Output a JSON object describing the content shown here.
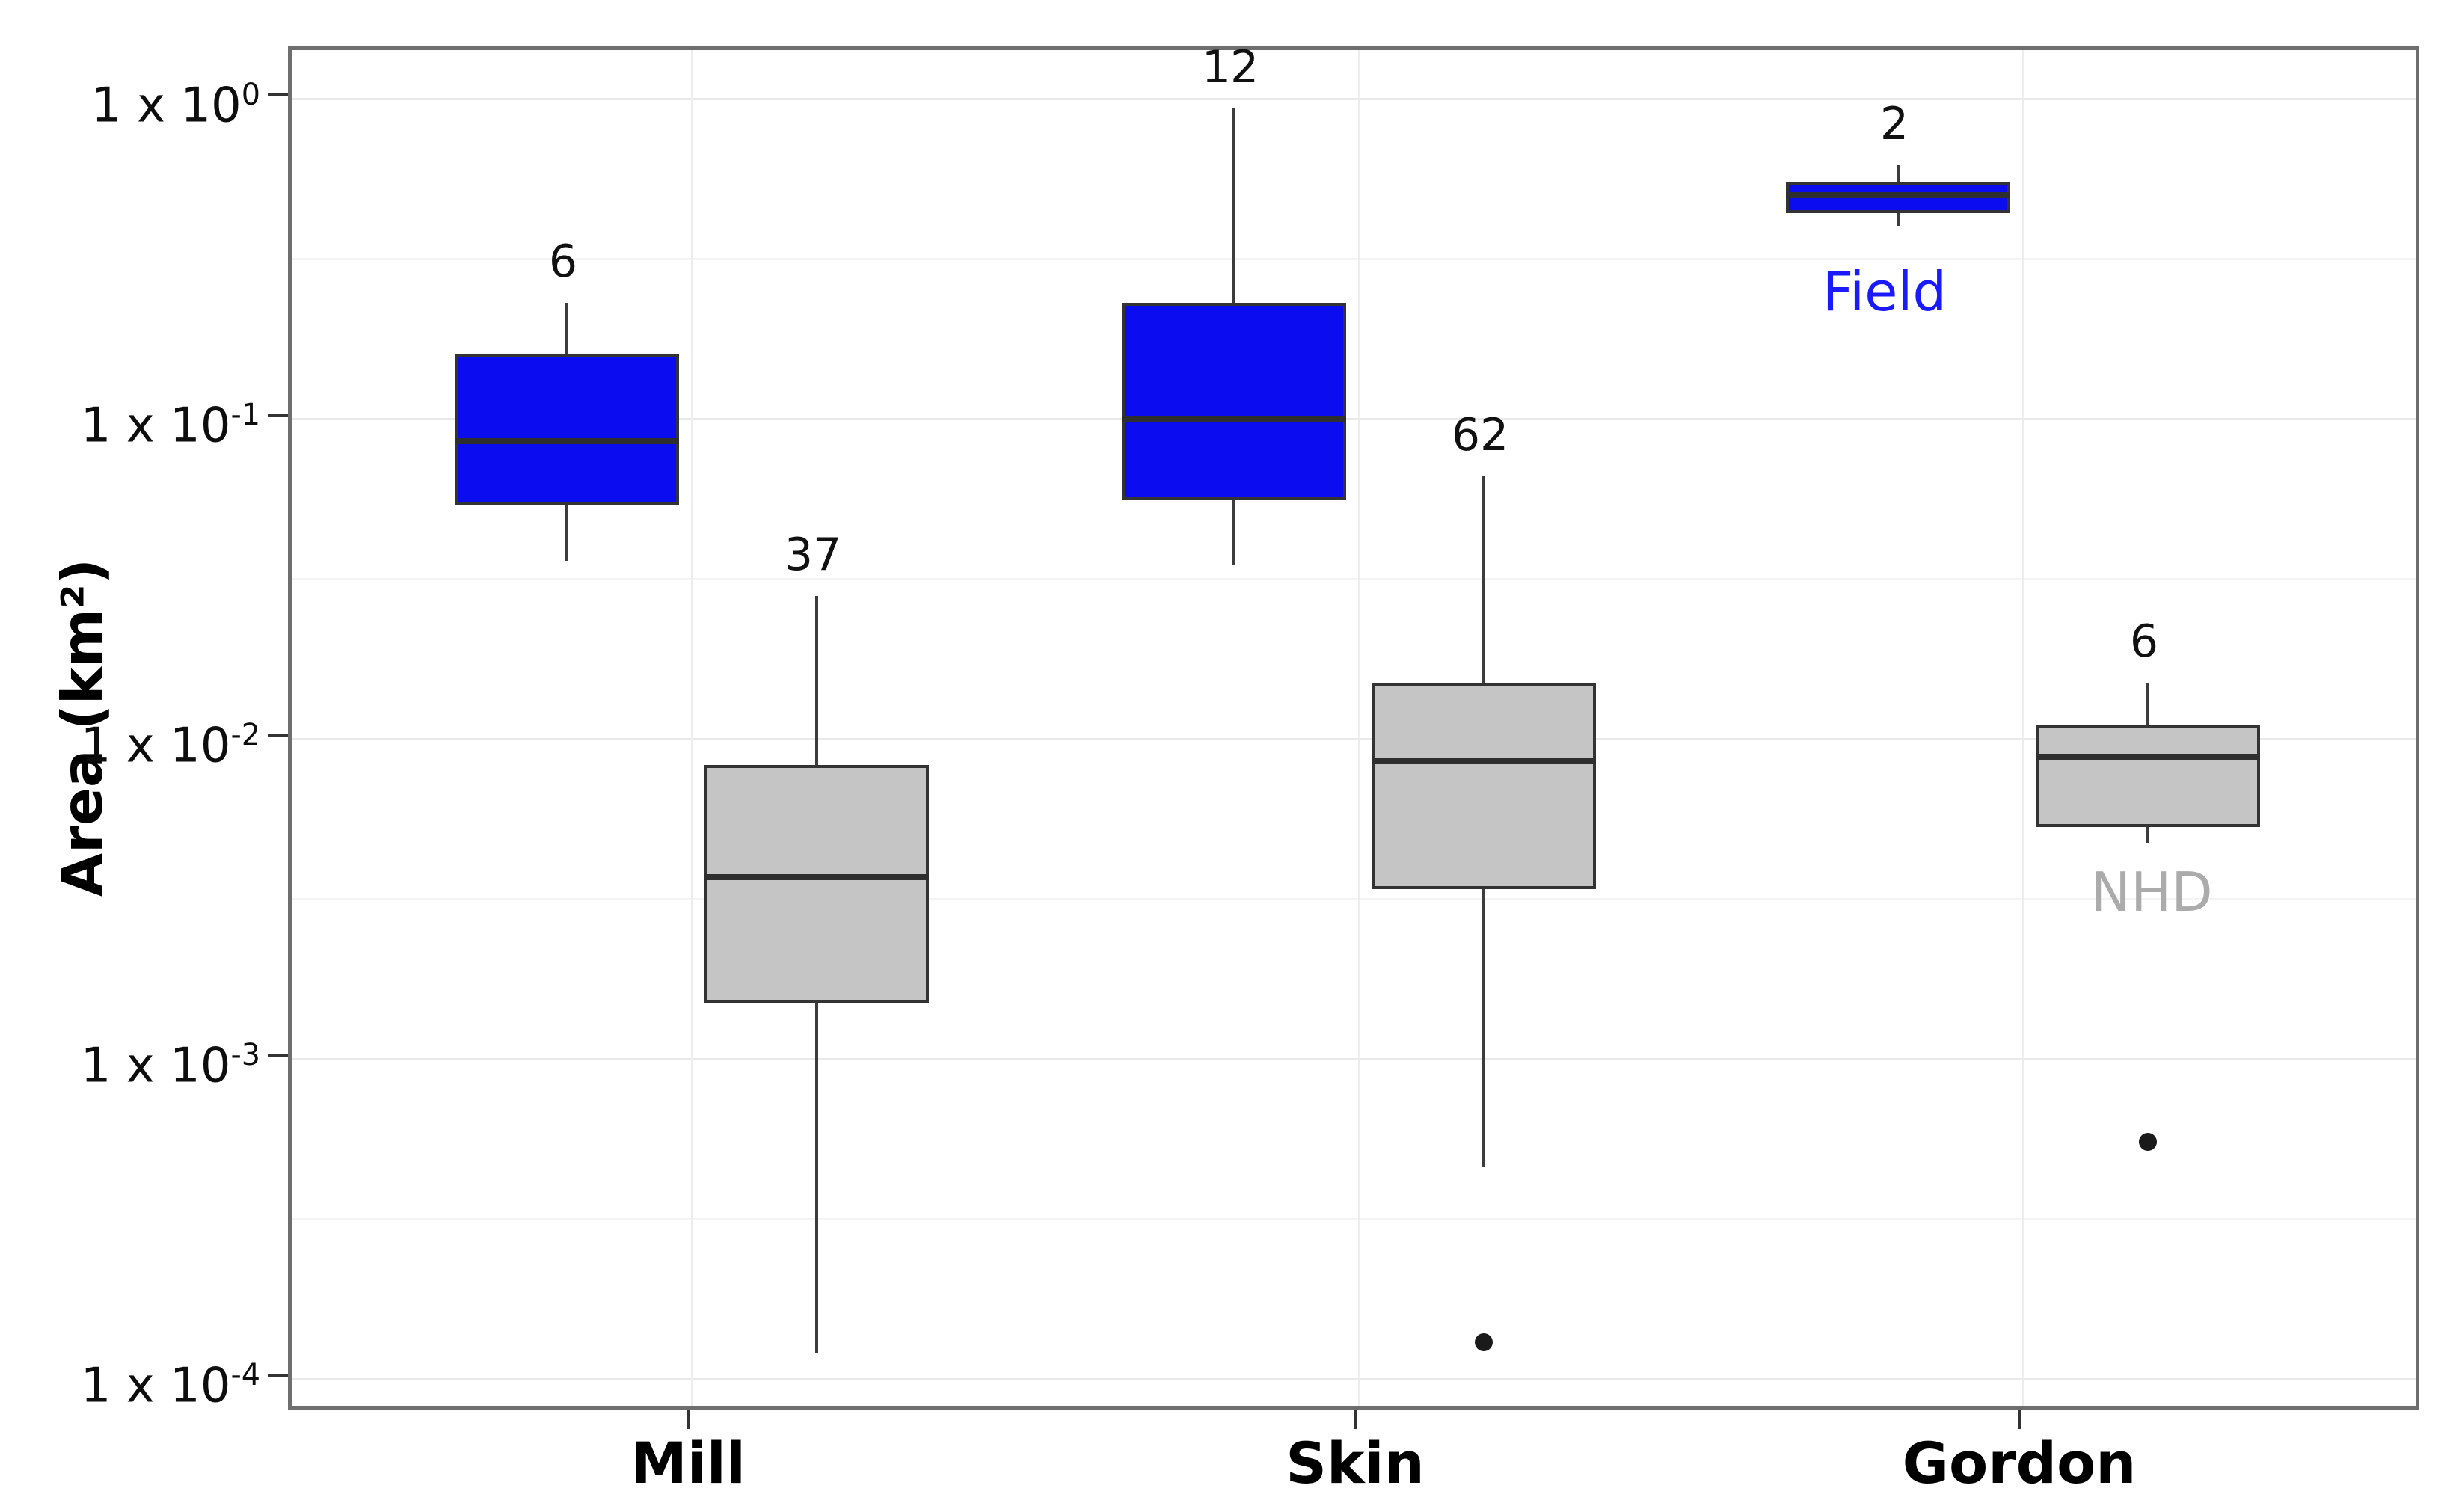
{
  "chart_data": {
    "type": "boxplot",
    "title": "",
    "ylabel": "Area (km²)",
    "xlabel": "",
    "y_scale": "log10",
    "ylim": [
      7.8e-05,
      1.42
    ],
    "grid": "major and minor horizontal, major vertical at category centers",
    "legend_position": "in-plot text annotations",
    "categories": [
      "Mill",
      "Skin",
      "Gordon"
    ],
    "groups": [
      {
        "name": "Field",
        "box_color": "#0b0cf0",
        "label_color": "#1a1aff"
      },
      {
        "name": "NHD",
        "box_color": "#c5c5c5",
        "label_color": "#ababab"
      }
    ],
    "y_ticks": [
      {
        "label": "1 x 10",
        "sup": "0",
        "value": 1
      },
      {
        "label": "1 x 10",
        "sup": "-1",
        "value": 0.1
      },
      {
        "label": "1 x 10",
        "sup": "-2",
        "value": 0.01
      },
      {
        "label": "1 x 10",
        "sup": "-3",
        "value": 0.001
      },
      {
        "label": "1 x 10",
        "sup": "-4",
        "value": 0.0001
      }
    ],
    "y_minor_ticks": [
      0.31623,
      0.031623,
      0.0031623,
      0.00031623
    ],
    "boxes": [
      {
        "category": "Mill",
        "group": "Field",
        "n": 6,
        "whisker_low": 0.036,
        "q1": 0.054,
        "median": 0.085,
        "q3": 0.16,
        "whisker_high": 0.23,
        "outliers": []
      },
      {
        "category": "Mill",
        "group": "NHD",
        "n": 37,
        "whisker_low": 0.00012,
        "q1": 0.0015,
        "median": 0.0037,
        "q3": 0.0083,
        "whisker_high": 0.028,
        "outliers": []
      },
      {
        "category": "Skin",
        "group": "Field",
        "n": 12,
        "whisker_low": 0.035,
        "q1": 0.056,
        "median": 0.1,
        "q3": 0.23,
        "whisker_high": 0.93,
        "outliers": []
      },
      {
        "category": "Skin",
        "group": "NHD",
        "n": 62,
        "whisker_low": 0.00046,
        "q1": 0.0034,
        "median": 0.0085,
        "q3": 0.015,
        "whisker_high": 0.066,
        "outliers": [
          0.00013
        ]
      },
      {
        "category": "Gordon",
        "group": "Field",
        "n": 2,
        "whisker_low": 0.4,
        "q1": 0.44,
        "median": 0.5,
        "q3": 0.55,
        "whisker_high": 0.62,
        "outliers": []
      },
      {
        "category": "Gordon",
        "group": "NHD",
        "n": 6,
        "whisker_low": 0.0047,
        "q1": 0.0053,
        "median": 0.0088,
        "q3": 0.011,
        "whisker_high": 0.015,
        "outliers": [
          0.00055
        ]
      }
    ],
    "annotations": [
      {
        "text": "Field",
        "color": "#1a1aff",
        "x": 2520,
        "y": 390
      },
      {
        "text": "NHD",
        "color": "#ababab",
        "x": 2877,
        "y": 1193
      }
    ]
  }
}
